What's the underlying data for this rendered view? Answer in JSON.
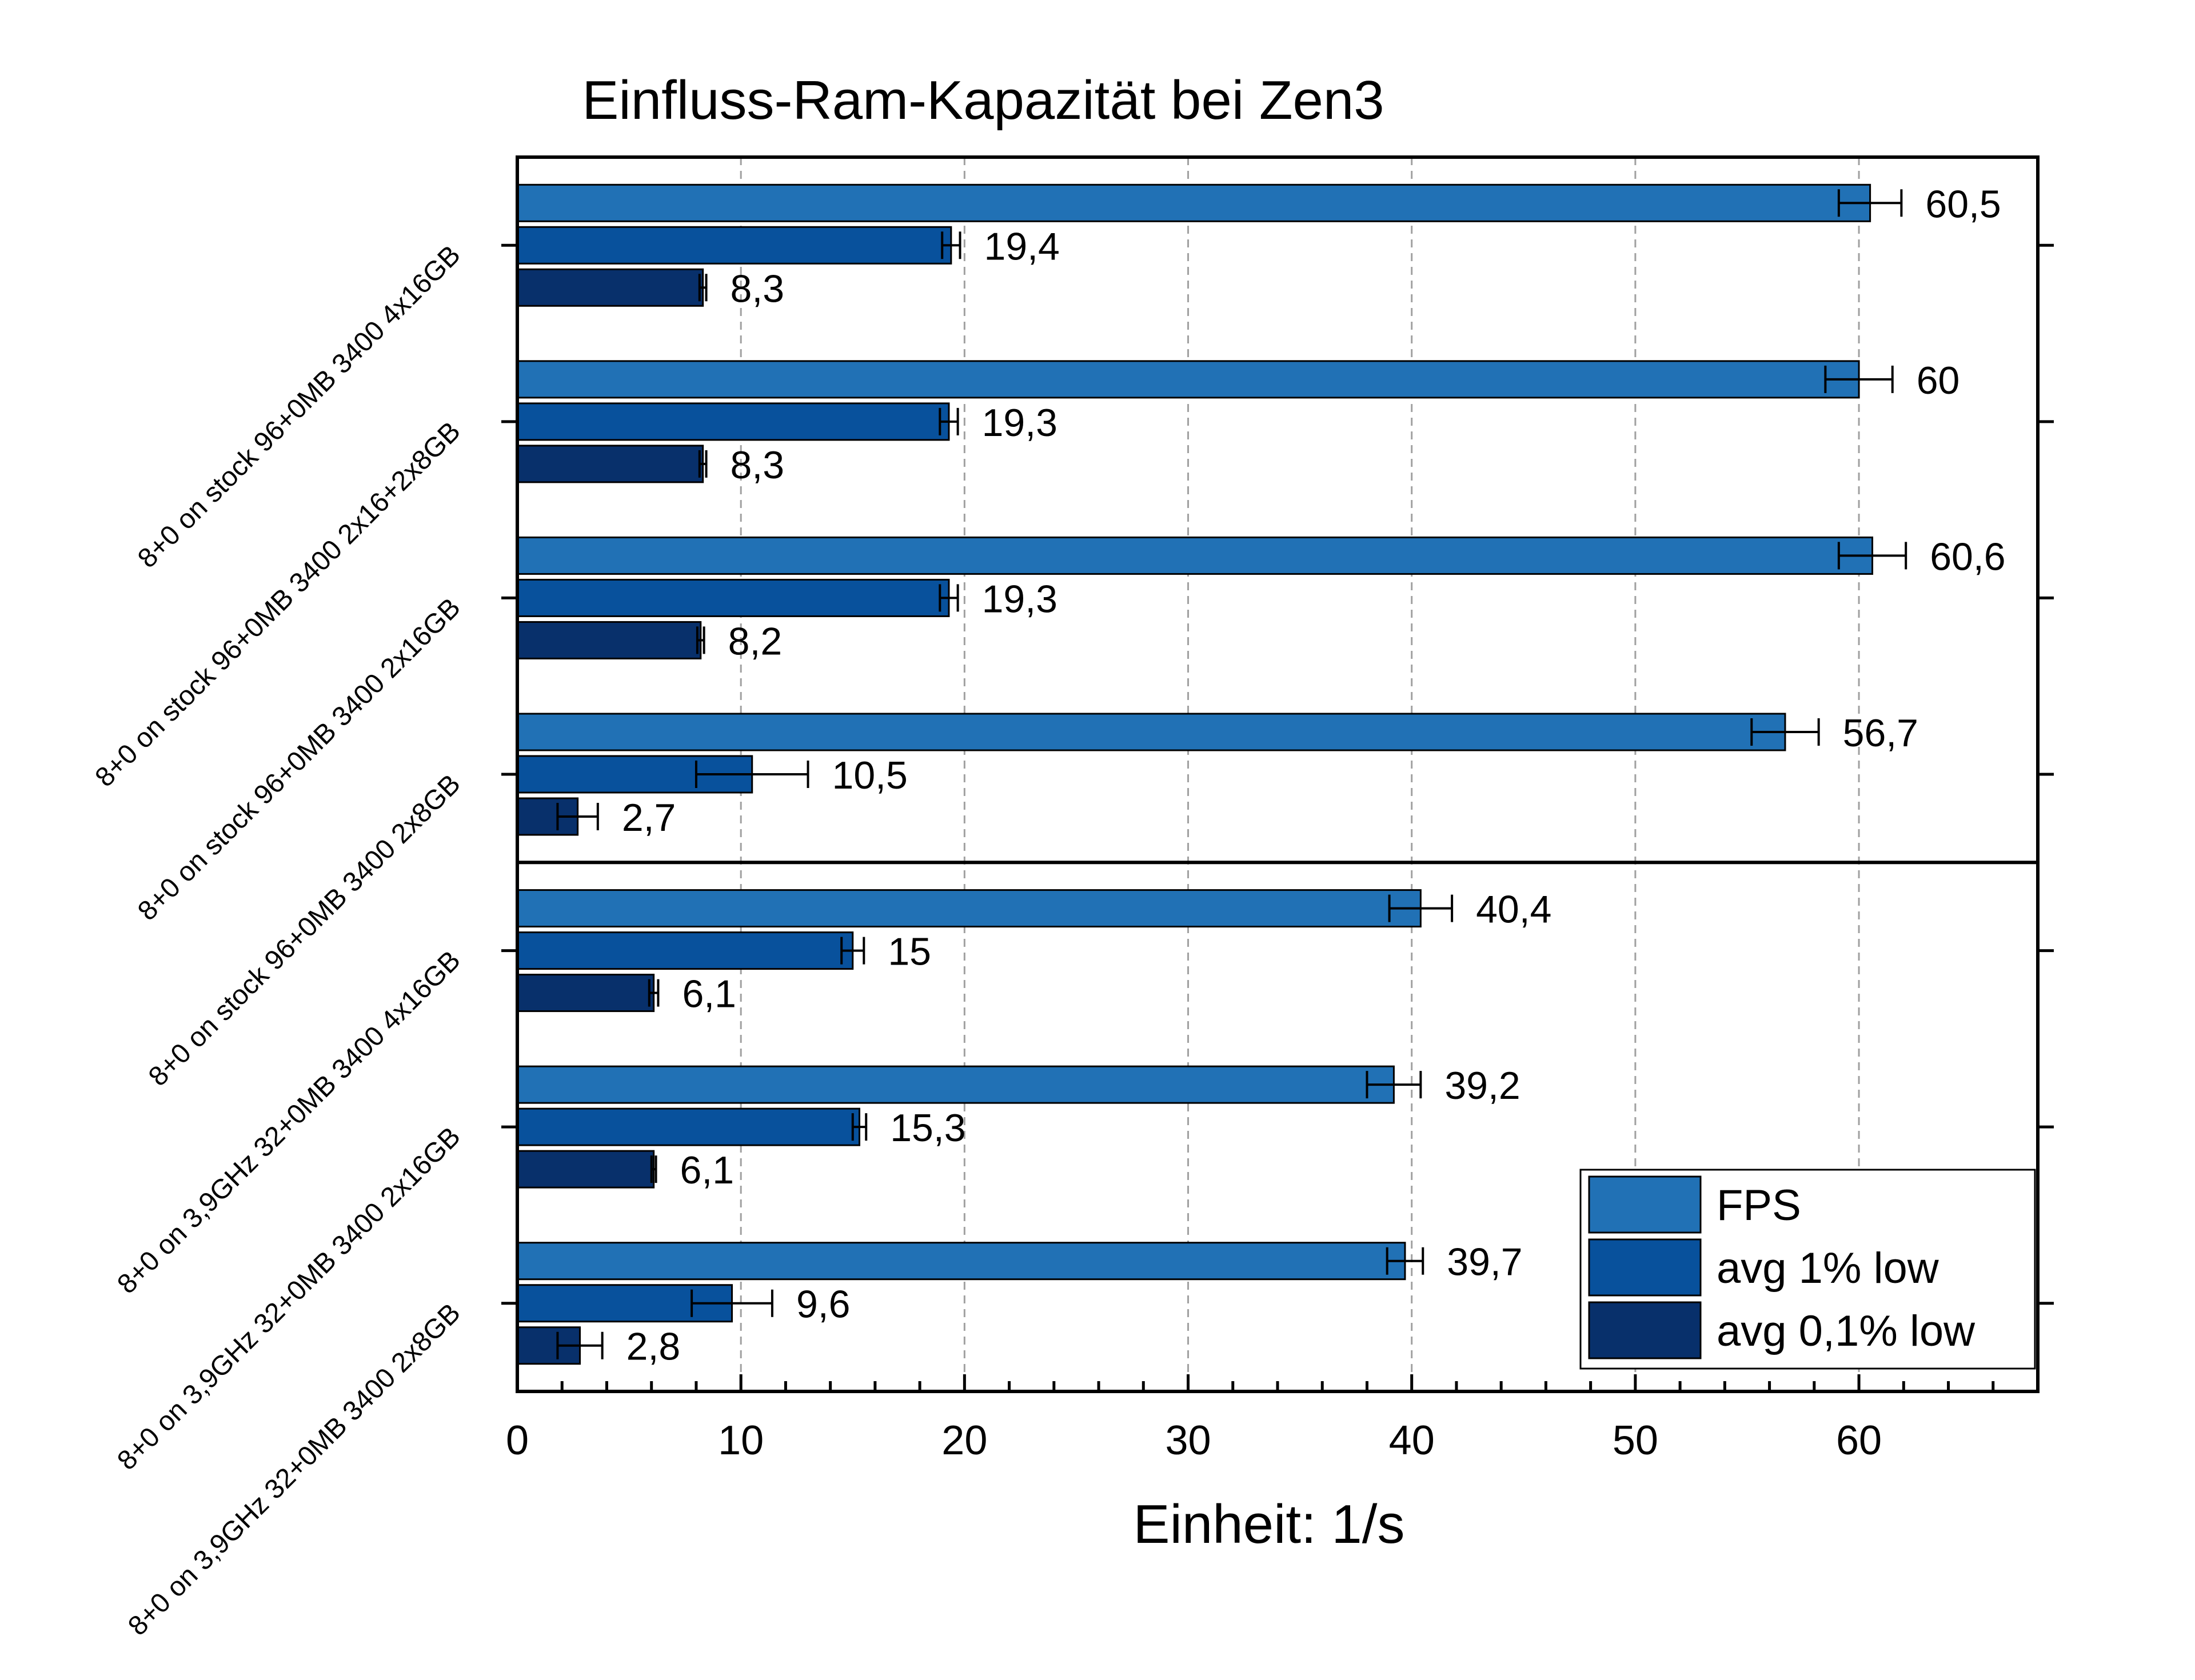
{
  "chart_data": {
    "type": "bar",
    "orientation": "horizontal",
    "title": "Einfluss-Ram-Kapazität bei Zen3",
    "xlabel": "Einheit: 1/s",
    "ylabel": "",
    "xlim": [
      0,
      68
    ],
    "xticks": [
      0,
      10,
      20,
      30,
      40,
      50,
      60
    ],
    "xtick_labels": [
      "0",
      "10",
      "20",
      "30",
      "40",
      "50",
      "60"
    ],
    "grid": "vertical dashed",
    "legend_position": "bottom-right",
    "categories": [
      "8+0 on stock 96+0MB 3400 4x16GB",
      "8+0 on stock 96+0MB 3400 2x16+2x8GB",
      "8+0 on stock 96+0MB 3400 2x16GB",
      "8+0 on stock 96+0MB 3400 2x8GB",
      "8+0 on 3,9GHz 32+0MB 3400 4x16GB",
      "8+0 on 3,9GHz 32+0MB 3400 2x16GB",
      "8+0 on 3,9GHz 32+0MB 3400 2x8GB"
    ],
    "series": [
      {
        "name": "FPS",
        "color": "#2171b5",
        "values": [
          60.5,
          60,
          60.6,
          56.7,
          40.4,
          39.2,
          39.7
        ],
        "labels": [
          "60,5",
          "60",
          "60,6",
          "56,7",
          "40,4",
          "39,2",
          "39,7"
        ],
        "errors": [
          1.4,
          1.5,
          1.5,
          1.5,
          1.4,
          1.2,
          0.8
        ]
      },
      {
        "name": "avg 1% low",
        "color": "#08519c",
        "values": [
          19.4,
          19.3,
          19.3,
          10.5,
          15,
          15.3,
          9.6
        ],
        "labels": [
          "19,4",
          "19,3",
          "19,3",
          "10,5",
          "15",
          "15,3",
          "9,6"
        ],
        "errors": [
          0.4,
          0.4,
          0.4,
          2.5,
          0.5,
          0.3,
          1.8
        ]
      },
      {
        "name": "avg 0,1% low",
        "color": "#08306b",
        "values": [
          8.3,
          8.3,
          8.2,
          2.7,
          6.1,
          6.1,
          2.8
        ],
        "labels": [
          "8,3",
          "8,3",
          "8,2",
          "2,7",
          "6,1",
          "6,1",
          "2,8"
        ],
        "errors": [
          0.15,
          0.15,
          0.15,
          0.9,
          0.2,
          0.1,
          1.0
        ]
      }
    ],
    "group_separator_after_index": 3
  }
}
